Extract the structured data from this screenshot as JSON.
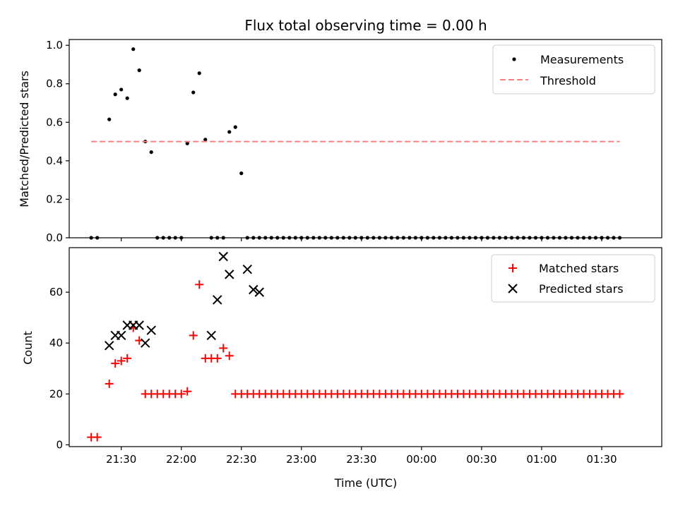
{
  "title": "Flux total observing time = 0.00 h",
  "chart_data": [
    {
      "name": "ratio",
      "type": "scatter",
      "xlabel": "",
      "ylabel": "Matched/Predicted stars",
      "xlim": [
        "21:04",
        "02:00"
      ],
      "ylim": [
        0,
        1.03
      ],
      "yticks": [
        "0.0",
        "0.2",
        "0.4",
        "0.6",
        "0.8",
        "1.0"
      ],
      "legend": "top-right",
      "series": [
        {
          "name": "Measurements",
          "color": "#000000",
          "marker": "dot",
          "x": [
            "21:15",
            "21:18",
            "21:24",
            "21:27",
            "21:30",
            "21:33",
            "21:36",
            "21:39",
            "21:42",
            "21:45",
            "21:48",
            "21:51",
            "21:54",
            "21:57",
            "22:00",
            "22:03",
            "22:06",
            "22:09",
            "22:12",
            "22:15",
            "22:18",
            "22:21",
            "22:24",
            "22:27",
            "22:30",
            "22:33",
            "22:36",
            "22:39",
            "22:42",
            "22:45",
            "22:48",
            "22:51",
            "22:54",
            "22:57",
            "23:00",
            "23:03",
            "23:06",
            "23:09",
            "23:12",
            "23:15",
            "23:18",
            "23:21",
            "23:24",
            "23:27",
            "23:30",
            "23:33",
            "23:36",
            "23:39",
            "23:42",
            "23:45",
            "23:48",
            "23:51",
            "23:54",
            "23:57",
            "00:00",
            "00:03",
            "00:06",
            "00:09",
            "00:12",
            "00:15",
            "00:18",
            "00:21",
            "00:24",
            "00:27",
            "00:30",
            "00:33",
            "00:36",
            "00:39",
            "00:42",
            "00:45",
            "00:48",
            "00:51",
            "00:54",
            "00:57",
            "01:00",
            "01:03",
            "01:06",
            "01:09",
            "01:12",
            "01:15",
            "01:18",
            "01:21",
            "01:24",
            "01:27",
            "01:30",
            "01:33",
            "01:36",
            "01:39"
          ],
          "y": [
            0,
            0,
            0.615,
            0.745,
            0.77,
            0.725,
            0.98,
            0.87,
            0.5,
            0.445,
            0,
            0,
            0,
            0,
            0,
            0.49,
            0.755,
            0.855,
            0.51,
            0,
            0,
            0,
            0.55,
            0.575,
            0.335,
            0,
            0,
            0,
            0,
            0,
            0,
            0,
            0,
            0,
            0,
            0,
            0,
            0,
            0,
            0,
            0,
            0,
            0,
            0,
            0,
            0,
            0,
            0,
            0,
            0,
            0,
            0,
            0,
            0,
            0,
            0,
            0,
            0,
            0,
            0,
            0,
            0,
            0,
            0,
            0,
            0,
            0,
            0,
            0,
            0,
            0,
            0,
            0,
            0,
            0,
            0,
            0,
            0,
            0,
            0,
            0,
            0,
            0,
            0,
            0,
            0,
            0,
            0
          ]
        },
        {
          "name": "Threshold",
          "color": "#ff7f7f",
          "marker": "dashed-line",
          "x": [
            "21:15",
            "01:39"
          ],
          "y": [
            0.5,
            0.5
          ]
        }
      ]
    },
    {
      "name": "counts",
      "type": "scatter",
      "xlabel": "Time (UTC)",
      "ylabel": "Count",
      "xlim": [
        "21:04",
        "02:00"
      ],
      "ylim": [
        -0.7,
        77.5
      ],
      "yticks": [
        "0",
        "20",
        "40",
        "60"
      ],
      "xticks": [
        "21:30",
        "22:00",
        "22:30",
        "23:00",
        "23:30",
        "00:00",
        "00:30",
        "01:00",
        "01:30"
      ],
      "legend": "top-right",
      "series": [
        {
          "name": "Matched stars",
          "color": "#ff0000",
          "marker": "plus",
          "x": [
            "21:15",
            "21:18",
            "21:24",
            "21:27",
            "21:30",
            "21:33",
            "21:36",
            "21:39",
            "21:42",
            "21:45",
            "21:48",
            "21:51",
            "21:54",
            "21:57",
            "22:00",
            "22:03",
            "22:06",
            "22:09",
            "22:12",
            "22:15",
            "22:18",
            "22:21",
            "22:24",
            "22:27",
            "22:30",
            "22:33",
            "22:36",
            "22:39",
            "22:42",
            "22:45",
            "22:48",
            "22:51",
            "22:54",
            "22:57",
            "23:00",
            "23:03",
            "23:06",
            "23:09",
            "23:12",
            "23:15",
            "23:18",
            "23:21",
            "23:24",
            "23:27",
            "23:30",
            "23:33",
            "23:36",
            "23:39",
            "23:42",
            "23:45",
            "23:48",
            "23:51",
            "23:54",
            "23:57",
            "00:00",
            "00:03",
            "00:06",
            "00:09",
            "00:12",
            "00:15",
            "00:18",
            "00:21",
            "00:24",
            "00:27",
            "00:30",
            "00:33",
            "00:36",
            "00:39",
            "00:42",
            "00:45",
            "00:48",
            "00:51",
            "00:54",
            "00:57",
            "01:00",
            "01:03",
            "01:06",
            "01:09",
            "01:12",
            "01:15",
            "01:18",
            "01:21",
            "01:24",
            "01:27",
            "01:30",
            "01:33",
            "01:36",
            "01:39"
          ],
          "y": [
            3,
            3,
            24,
            32,
            33,
            34,
            46,
            41,
            20,
            20,
            20,
            20,
            20,
            20,
            20,
            21,
            43,
            63,
            34,
            34,
            34,
            38,
            35,
            20,
            20,
            20,
            20,
            20,
            20,
            20,
            20,
            20,
            20,
            20,
            20,
            20,
            20,
            20,
            20,
            20,
            20,
            20,
            20,
            20,
            20,
            20,
            20,
            20,
            20,
            20,
            20,
            20,
            20,
            20,
            20,
            20,
            20,
            20,
            20,
            20,
            20,
            20,
            20,
            20,
            20,
            20,
            20,
            20,
            20,
            20,
            20,
            20,
            20,
            20,
            20,
            20,
            20,
            20,
            20,
            20,
            20,
            20,
            20,
            20,
            20,
            20,
            20,
            20
          ]
        },
        {
          "name": "Predicted stars",
          "color": "#000000",
          "marker": "x",
          "x": [
            "21:24",
            "21:27",
            "21:30",
            "21:33",
            "21:36",
            "21:39",
            "21:42",
            "21:45",
            "22:15",
            "22:18",
            "22:21",
            "22:24",
            "22:33",
            "22:36",
            "22:39"
          ],
          "y": [
            39,
            43,
            43,
            47,
            47,
            47,
            40,
            45,
            43,
            57,
            74,
            67,
            69,
            61,
            60
          ]
        }
      ]
    }
  ]
}
